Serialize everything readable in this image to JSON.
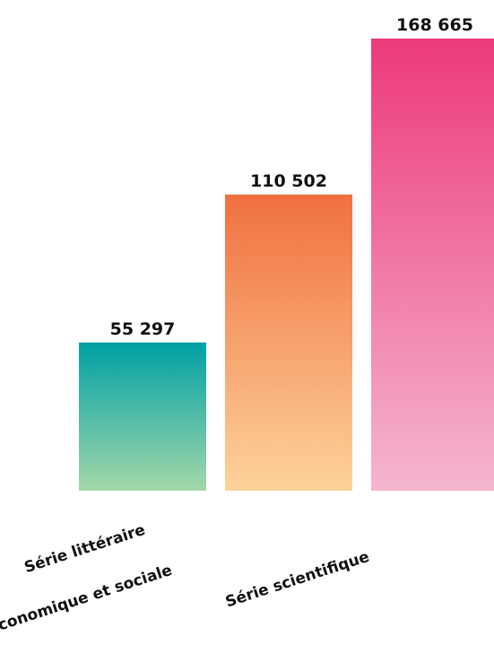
{
  "chart_data": {
    "type": "bar",
    "categories": [
      "Série littéraire",
      "Série économique et sociale",
      "Série scientifique"
    ],
    "values": [
      55297,
      110502,
      168665
    ],
    "value_labels": [
      "55 297",
      "110 502",
      "168 665"
    ],
    "ylim": [
      0,
      168665
    ],
    "grid": false,
    "legend": "none",
    "colors": [
      {
        "top": "#00A0A6",
        "bottom": "#A3D8A8"
      },
      {
        "top": "#F07040",
        "bottom": "#FDD39A"
      },
      {
        "top": "#EC3A7A",
        "bottom": "#F5B6D0"
      }
    ]
  }
}
